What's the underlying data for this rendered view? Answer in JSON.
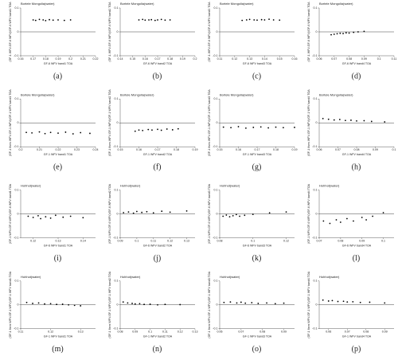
{
  "chart_data": [
    {
      "type": "scatter",
      "title": "Bortele Mongolia(water)",
      "panel": "(a)",
      "xlabel": "GF-6 WFV band1 TOA",
      "ylabel": "(GF-1 WFV-GF-6 WFV)/GF-6 WFV band1 TOA",
      "x": [
        0.17,
        0.172,
        0.175,
        0.178,
        0.18,
        0.183,
        0.186,
        0.19,
        0.195,
        0.2
      ],
      "values": [
        0.05,
        0.048,
        0.052,
        0.05,
        0.047,
        0.051,
        0.049,
        0.05,
        0.048,
        0.05
      ],
      "xlim": [
        0.16,
        0.22
      ],
      "xticks": [
        0.16,
        0.17,
        0.18,
        0.19,
        0.2,
        0.21,
        0.22
      ],
      "ylim": [
        -0.1,
        0.1
      ],
      "yticks": [
        -0.1,
        0,
        0.1
      ],
      "hline": 0,
      "color": "#000000"
    },
    {
      "type": "scatter",
      "title": "Bortele Mongolia(water)",
      "panel": "(b)",
      "xlabel": "GF-6 WFV band2 TOA",
      "ylabel": "(GF-1 WFV-GF-6 WFV)/GF-6 WFV band2 TOA",
      "x": [
        0.155,
        0.158,
        0.16,
        0.163,
        0.165,
        0.168,
        0.17,
        0.173,
        0.176,
        0.18
      ],
      "values": [
        0.05,
        0.052,
        0.049,
        0.05,
        0.051,
        0.048,
        0.05,
        0.052,
        0.049,
        0.05
      ],
      "xlim": [
        0.14,
        0.2
      ],
      "xticks": [
        0.14,
        0.15,
        0.16,
        0.17,
        0.18,
        0.19,
        0.2
      ],
      "ylim": [
        -0.1,
        0.1
      ],
      "yticks": [
        -0.1,
        0,
        0.1
      ],
      "hline": 0,
      "color": "#000000"
    },
    {
      "type": "scatter",
      "title": "Bortele Mongolia(water)",
      "panel": "(c)",
      "xlabel": "GF-6 WFV band3 TOA",
      "ylabel": "(GF-1 WFV-GF-6 WFV)/GF-6 WFV band3 TOA",
      "x": [
        0.125,
        0.128,
        0.13,
        0.133,
        0.135,
        0.138,
        0.14,
        0.143,
        0.146,
        0.15
      ],
      "values": [
        0.048,
        0.05,
        0.052,
        0.05,
        0.049,
        0.051,
        0.05,
        0.053,
        0.05,
        0.049
      ],
      "xlim": [
        0.11,
        0.16
      ],
      "xticks": [
        0.11,
        0.12,
        0.13,
        0.14,
        0.15,
        0.16
      ],
      "ylim": [
        -0.1,
        0.1
      ],
      "yticks": [
        -0.1,
        0,
        0.1
      ],
      "hline": 0,
      "color": "#000000"
    },
    {
      "type": "scatter",
      "title": "Bortele Mongolia(water)",
      "panel": "(d)",
      "xlabel": "GF-6 WFV band4 TOA",
      "ylabel": "(GF-1 WFV-GF-6 WFV)/GF-6 WFV band4 TOA",
      "x": [
        0.068,
        0.07,
        0.072,
        0.074,
        0.076,
        0.078,
        0.08,
        0.083,
        0.086,
        0.09
      ],
      "values": [
        -0.012,
        -0.01,
        -0.008,
        -0.006,
        -0.007,
        -0.004,
        -0.005,
        -0.002,
        0,
        0.002
      ],
      "xlim": [
        0.06,
        0.11
      ],
      "xticks": [
        0.06,
        0.07,
        0.08,
        0.09,
        0.1,
        0.11
      ],
      "ylim": [
        -0.1,
        0.1
      ],
      "yticks": [
        -0.1,
        0,
        0.1
      ],
      "hline": 0,
      "color": "#000000"
    },
    {
      "type": "scatter",
      "title": "Bortele Mongolia(water)",
      "panel": "(e)",
      "xlabel": "GF-1 WFV band1 TOA",
      "ylabel": "(GF-1 6sns WFV-GF-1 WFV)/GF-1 WFV band1 TOA",
      "x": [
        0.203,
        0.206,
        0.21,
        0.213,
        0.216,
        0.22,
        0.224,
        0.228,
        0.232,
        0.237
      ],
      "values": [
        -0.04,
        -0.042,
        -0.038,
        -0.045,
        -0.04,
        -0.043,
        -0.039,
        -0.046,
        -0.041,
        -0.044
      ],
      "xlim": [
        0.2,
        0.24
      ],
      "xticks": [
        0.2,
        0.21,
        0.22,
        0.23,
        0.24
      ],
      "ylim": [
        -0.1,
        0.1
      ],
      "yticks": [
        -0.1,
        0,
        0.1
      ],
      "hline": 0,
      "color": "#000000"
    },
    {
      "type": "scatter",
      "title": "Bortele Mongolia(water)",
      "panel": "(f)",
      "xlabel": "GF-1 WFV band2 TOA",
      "ylabel": "(GF-1 6sns WFV-GF-1 WFV)/GF-1 WFV band2 TOA",
      "x": [
        0.158,
        0.16,
        0.162,
        0.165,
        0.167,
        0.17,
        0.172,
        0.175,
        0.178,
        0.181
      ],
      "values": [
        -0.035,
        -0.03,
        -0.032,
        -0.028,
        -0.03,
        -0.027,
        -0.031,
        -0.026,
        -0.029,
        -0.025
      ],
      "xlim": [
        0.15,
        0.19
      ],
      "xticks": [
        0.15,
        0.16,
        0.17,
        0.18,
        0.19
      ],
      "ylim": [
        -0.1,
        0.1
      ],
      "yticks": [
        -0.1,
        0,
        0.1
      ],
      "hline": 0,
      "color": "#000000"
    },
    {
      "type": "scatter",
      "title": "Bortele Mongolia(water)",
      "panel": "(g)",
      "xlabel": "GF-1 WFV band3 TOA",
      "ylabel": "(GF-1 6sns WFV-GF-1 WFV)/GF-1 WFV band3 TOA",
      "x": [
        0.152,
        0.156,
        0.16,
        0.164,
        0.168,
        0.172,
        0.176,
        0.18,
        0.184,
        0.19
      ],
      "values": [
        -0.018,
        -0.02,
        -0.016,
        -0.022,
        -0.019,
        -0.017,
        -0.021,
        -0.018,
        -0.02,
        -0.019
      ],
      "xlim": [
        0.15,
        0.19
      ],
      "xticks": [
        0.15,
        0.16,
        0.17,
        0.18,
        0.19
      ],
      "ylim": [
        -0.1,
        0.1
      ],
      "yticks": [
        -0.1,
        0,
        0.1
      ],
      "hline": 0,
      "color": "#000000"
    },
    {
      "type": "scatter",
      "title": "Bortele Mongolia(water)",
      "panel": "(h)",
      "xlabel": "GF-1 WFV band4 TOA",
      "ylabel": "(GF-1 6sns WFV-GF-1 WFV)/GF-1 WFV band4 TOA",
      "x": [
        0.062,
        0.065,
        0.068,
        0.071,
        0.074,
        0.077,
        0.08,
        0.084,
        0.088,
        0.095
      ],
      "values": [
        0.018,
        0.015,
        0.012,
        0.014,
        0.01,
        0.011,
        0.008,
        0.009,
        0.006,
        0.004
      ],
      "xlim": [
        0.06,
        0.1
      ],
      "xticks": [
        0.06,
        0.07,
        0.08,
        0.09,
        0.1
      ],
      "ylim": [
        -0.1,
        0.1
      ],
      "yticks": [
        -0.1,
        0,
        0.1
      ],
      "hline": 0,
      "color": "#000000"
    },
    {
      "type": "scatter",
      "title": "Hohhot(water)",
      "panel": "(i)",
      "xlabel": "GF-6 WFV band1 TOA",
      "ylabel": "(GF-1 WFV-GF-6 WFV)/GF-6 WFV band1 TOA",
      "x": [
        0.118,
        0.12,
        0.122,
        0.123,
        0.125,
        0.127,
        0.129,
        0.132,
        0.135,
        0.14
      ],
      "values": [
        -0.01,
        -0.015,
        -0.008,
        -0.02,
        -0.012,
        -0.018,
        -0.006,
        -0.014,
        -0.01,
        -0.016
      ],
      "xlim": [
        0.115,
        0.145
      ],
      "xticks": [
        0.12,
        0.13,
        0.14
      ],
      "ylim": [
        -0.1,
        0.1
      ],
      "yticks": [
        -0.1,
        0,
        0.1
      ],
      "hline": 0,
      "color": "#000000"
    },
    {
      "type": "scatter",
      "title": "Hohhot(water)",
      "panel": "(j)",
      "xlabel": "GF-6 WFV band2 TOA",
      "ylabel": "(GF-1 WFV-GF-6 WFV)/GF-6 WFV band2 TOA",
      "x": [
        0.092,
        0.095,
        0.098,
        0.1,
        0.103,
        0.106,
        0.11,
        0.115,
        0.12,
        0.13
      ],
      "values": [
        0.005,
        0.008,
        0.003,
        0.01,
        0.006,
        0.009,
        0.004,
        0.011,
        0.007,
        0.012
      ],
      "xlim": [
        0.09,
        0.135
      ],
      "xticks": [
        0.09,
        0.1,
        0.11,
        0.12,
        0.13
      ],
      "ylim": [
        -0.1,
        0.1
      ],
      "yticks": [
        -0.1,
        0,
        0.1
      ],
      "hline": 0,
      "color": "#000000"
    },
    {
      "type": "scatter",
      "title": "Hohhot(water)",
      "panel": "(k)",
      "xlabel": "GF-6 WFV band3 TOA",
      "ylabel": "(GF-1 WFV-GF-6 WFV)/GF-6 WFV band3 TOA",
      "x": [
        0.082,
        0.084,
        0.086,
        0.088,
        0.09,
        0.092,
        0.095,
        0.1,
        0.11,
        0.12
      ],
      "values": [
        -0.01,
        -0.005,
        -0.012,
        -0.008,
        -0.003,
        -0.01,
        -0.006,
        -0.002,
        0.004,
        0.008
      ],
      "xlim": [
        0.08,
        0.125
      ],
      "xticks": [
        0.08,
        0.1,
        0.12
      ],
      "ylim": [
        -0.1,
        0.1
      ],
      "yticks": [
        -0.1,
        0,
        0.1
      ],
      "hline": 0,
      "color": "#000000"
    },
    {
      "type": "scatter",
      "title": "Hohhot(water)",
      "panel": "(l)",
      "xlabel": "GF-6 WFV band4 TOA",
      "ylabel": "(GF-1 WFV-GF-6 WFV)/GF-6 WFV band4 TOA",
      "x": [
        0.072,
        0.075,
        0.078,
        0.08,
        0.083,
        0.086,
        0.09,
        0.092,
        0.095,
        0.1
      ],
      "values": [
        -0.03,
        -0.04,
        -0.025,
        -0.035,
        -0.02,
        -0.03,
        -0.015,
        -0.025,
        -0.01,
        0.005
      ],
      "xlim": [
        0.07,
        0.105
      ],
      "xticks": [
        0.07,
        0.08,
        0.09,
        0.1
      ],
      "ylim": [
        -0.1,
        0.1
      ],
      "yticks": [
        -0.1,
        0,
        0.1
      ],
      "hline": 0,
      "color": "#000000"
    },
    {
      "type": "scatter",
      "title": "Hohhot(water)",
      "panel": "(m)",
      "xlabel": "GF-1 WFV band1 TOA",
      "ylabel": "(GF-1 6sns WFV-GF-1 WFV)/GF-1 WFV band1 TOA",
      "x": [
        0.112,
        0.114,
        0.116,
        0.118,
        0.12,
        0.122,
        0.124,
        0.126,
        0.128,
        0.13
      ],
      "values": [
        0.01,
        0.006,
        0.008,
        0.004,
        0.005,
        0.002,
        0.003,
        0,
        -0.002,
        -0.004
      ],
      "xlim": [
        0.11,
        0.135
      ],
      "xticks": [
        0.11,
        0.12,
        0.13
      ],
      "ylim": [
        -0.1,
        0.1
      ],
      "yticks": [
        -0.1,
        0,
        0.1
      ],
      "hline": 0,
      "color": "#000000"
    },
    {
      "type": "scatter",
      "title": "Hohhot(water)",
      "panel": "(n)",
      "xlabel": "GF-1 WFV band2 TOA",
      "ylabel": "(GF-1 6sns WFV-GF-1 WFV)/GF-1 WFV band2 TOA",
      "x": [
        0.082,
        0.085,
        0.088,
        0.09,
        0.093,
        0.096,
        0.1,
        0.105,
        0.11,
        0.12
      ],
      "values": [
        0.012,
        0.008,
        0.006,
        0.004,
        0.005,
        0.002,
        0.003,
        0,
        0.002,
        0.001
      ],
      "xlim": [
        0.08,
        0.13
      ],
      "xticks": [
        0.08,
        0.09,
        0.1,
        0.11,
        0.12,
        0.13
      ],
      "ylim": [
        -0.1,
        0.1
      ],
      "yticks": [
        -0.1,
        0,
        0.1
      ],
      "hline": 0,
      "color": "#000000"
    },
    {
      "type": "scatter",
      "title": "Hohhot(water)",
      "panel": "(o)",
      "xlabel": "GF-1 WFV band3 TOA",
      "ylabel": "(GF-1 6sns WFV-GF-1 WFV)/GF-1 WFV band3 TOA",
      "x": [
        0.062,
        0.065,
        0.068,
        0.07,
        0.072,
        0.075,
        0.078,
        0.082,
        0.086,
        0.09
      ],
      "values": [
        0.01,
        0.012,
        0.008,
        0.011,
        0.007,
        0.009,
        0.006,
        0.008,
        0.005,
        0.007
      ],
      "xlim": [
        0.06,
        0.095
      ],
      "xticks": [
        0.06,
        0.07,
        0.08,
        0.09
      ],
      "ylim": [
        -0.1,
        0.1
      ],
      "yticks": [
        -0.1,
        0,
        0.1
      ],
      "hline": 0,
      "color": "#000000"
    },
    {
      "type": "scatter",
      "title": "Hohhot(water)",
      "panel": "(p)",
      "xlabel": "GF-1 WFV band4 TOA",
      "ylabel": "(GF-1 6sns WFV-GF-1 WFV)/GF-1 WFV band4 TOA",
      "x": [
        0.057,
        0.06,
        0.062,
        0.065,
        0.068,
        0.07,
        0.073,
        0.077,
        0.082,
        0.09
      ],
      "values": [
        0.02,
        0.016,
        0.018,
        0.014,
        0.015,
        0.012,
        0.013,
        0.01,
        0.011,
        0.008
      ],
      "xlim": [
        0.055,
        0.095
      ],
      "xticks": [
        0.06,
        0.07,
        0.08,
        0.09
      ],
      "ylim": [
        -0.1,
        0.1
      ],
      "yticks": [
        -0.1,
        0,
        0.1
      ],
      "hline": 0,
      "color": "#000000"
    }
  ]
}
